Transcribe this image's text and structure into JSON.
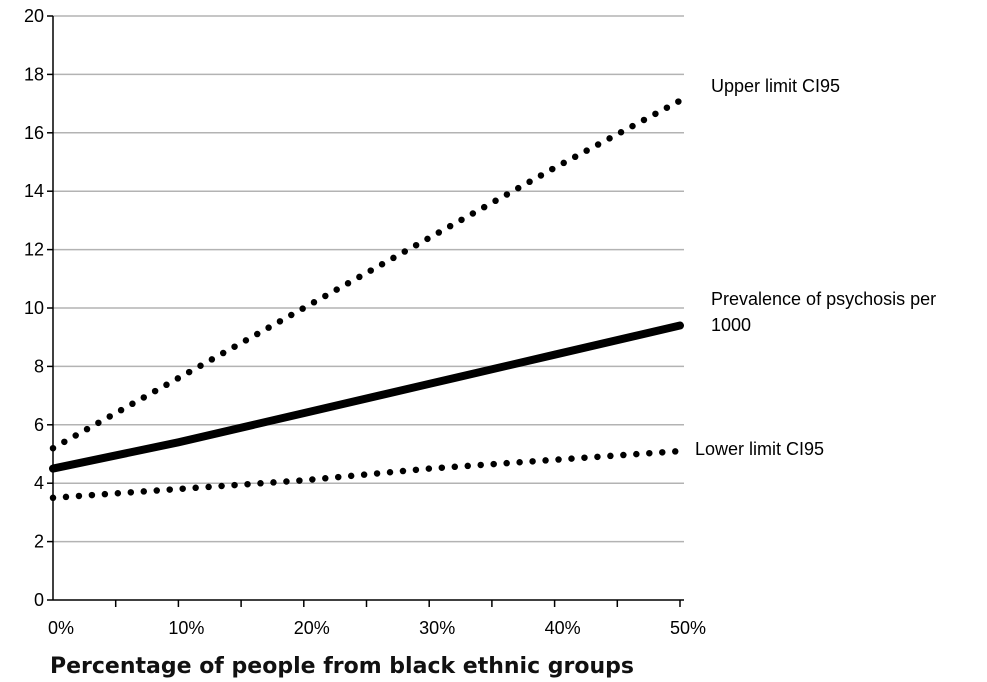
{
  "chart_data": {
    "type": "line",
    "xlabel": "Percentage of people from black ethnic groups",
    "ylabel": "",
    "xlim": [
      0,
      50
    ],
    "ylim": [
      0,
      20
    ],
    "x_ticks": [
      0,
      10,
      20,
      30,
      40,
      50
    ],
    "x_tick_labels": [
      "0%",
      "10%",
      "20%",
      "30%",
      "40%",
      "50%"
    ],
    "y_ticks": [
      0,
      2,
      4,
      6,
      8,
      10,
      12,
      14,
      16,
      18,
      20
    ],
    "y_tick_labels": [
      "0",
      "2",
      "4",
      "6",
      "8",
      "10",
      "12",
      "14",
      "16",
      "18",
      "20"
    ],
    "grid": "horizontal",
    "legend": "end-of-line labels",
    "series": [
      {
        "name": "Upper limit CI95",
        "style": "dotted",
        "x": [
          0,
          10,
          20,
          30,
          40,
          50
        ],
        "values": [
          5.2,
          7.6,
          10.0,
          12.4,
          14.8,
          17.1
        ],
        "color": "#000000"
      },
      {
        "name": "Prevalence of psychosis per 1000",
        "style": "solid",
        "x": [
          0,
          10,
          20,
          30,
          40,
          50
        ],
        "values": [
          4.5,
          5.4,
          6.4,
          7.4,
          8.4,
          9.4
        ],
        "color": "#000000"
      },
      {
        "name": "Lower limit CI95",
        "style": "dotted",
        "x": [
          0,
          10,
          20,
          30,
          40,
          50
        ],
        "values": [
          3.5,
          3.8,
          4.1,
          4.5,
          4.8,
          5.1
        ],
        "color": "#000000"
      }
    ],
    "series_labels": [
      {
        "lines": [
          "Upper limit CI95"
        ]
      },
      {
        "lines": [
          "Prevalence of psychosis per",
          "1000"
        ]
      },
      {
        "lines": [
          "Lower limit CI95"
        ]
      }
    ]
  }
}
